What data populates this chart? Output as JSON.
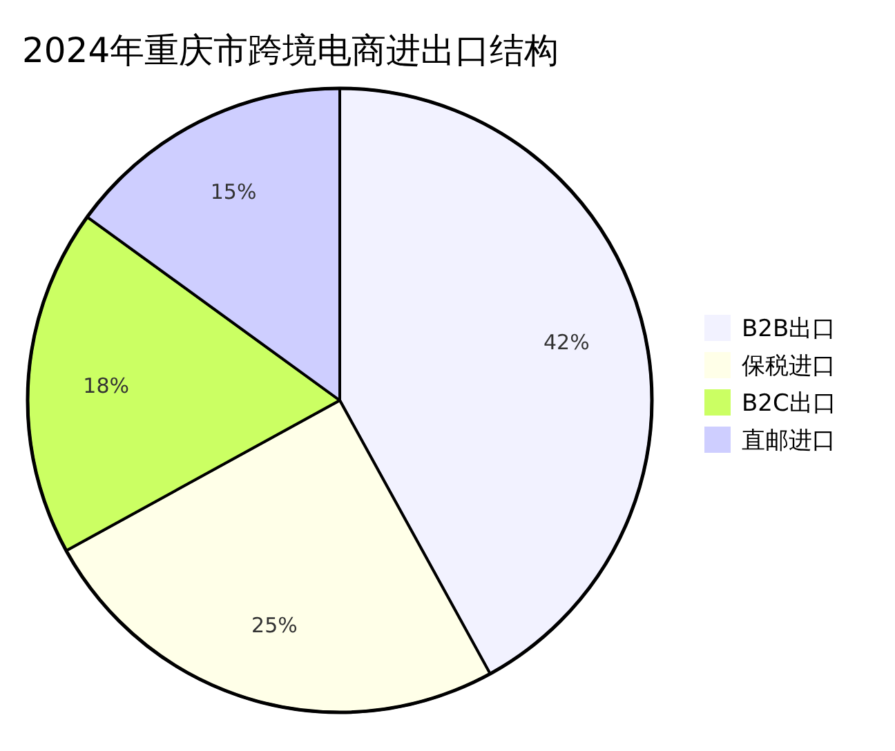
{
  "chart_data": {
    "type": "pie",
    "title": "2024年重庆市跨境电商进出口结构",
    "categories": [
      "B2B出口",
      "保税进口",
      "B2C出口",
      "直邮进口"
    ],
    "values": [
      42,
      25,
      18,
      15
    ],
    "value_labels": [
      "42%",
      "25%",
      "18%",
      "15%"
    ],
    "colors": [
      "#f2f2ff",
      "#ffffe8",
      "#cbff63",
      "#ceceff"
    ],
    "legend": "right"
  }
}
